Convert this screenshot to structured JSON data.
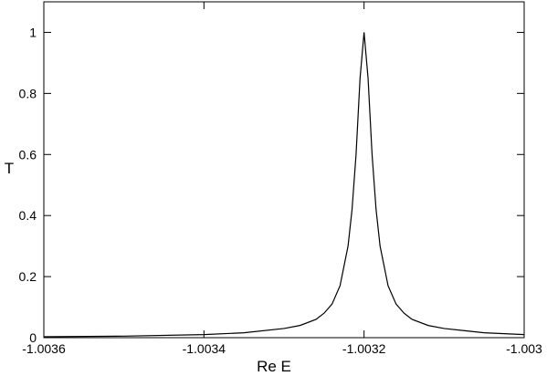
{
  "chart_data": {
    "type": "line",
    "x_label": "Re E",
    "y_label": "T",
    "x": [
      -1.0036,
      -1.0035,
      -1.0034,
      -1.00335,
      -1.0033,
      -1.00328,
      -1.00326,
      -1.00325,
      -1.00324,
      -1.00323,
      -1.00322,
      -1.003215,
      -1.00321,
      -1.003205,
      -1.0032,
      -1.003195,
      -1.00319,
      -1.003185,
      -1.00318,
      -1.00317,
      -1.00316,
      -1.00315,
      -1.00314,
      -1.00312,
      -1.0031,
      -1.00305,
      -1.003
    ],
    "series": [
      {
        "color": "#000000",
        "values": [
          0.003,
          0.005,
          0.01,
          0.016,
          0.03,
          0.04,
          0.06,
          0.08,
          0.11,
          0.17,
          0.3,
          0.42,
          0.6,
          0.85,
          1,
          0.85,
          0.6,
          0.42,
          0.3,
          0.17,
          0.11,
          0.08,
          0.06,
          0.04,
          0.03,
          0.016,
          0.01
        ]
      }
    ],
    "xlim": [
      -1.0036,
      -1.003
    ],
    "ylim": [
      0,
      1.1
    ],
    "xticks": [
      -1.0036,
      -1.0034,
      -1.0032,
      -1.003
    ],
    "yticks": [
      0,
      0.2,
      0.4,
      0.6,
      0.8,
      1
    ]
  }
}
